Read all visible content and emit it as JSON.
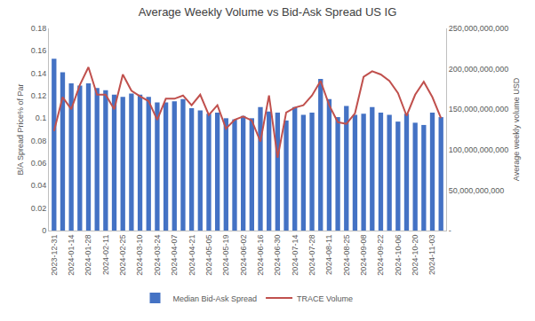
{
  "chart_data": {
    "type": "bar",
    "title": "Average Weekly Volume vs Bid-Ask Spread US IG",
    "y_label": "B/A Spread Price% of Par",
    "y2_label": "Average weekly volume USD",
    "categories": [
      "2023-12-31",
      null,
      "2024-01-14",
      null,
      "2024-01-28",
      null,
      "2024-02-11",
      null,
      "2024-02-25",
      null,
      "2024-03-10",
      null,
      "2024-03-24",
      null,
      "2024-04-07",
      null,
      "2024-04-21",
      null,
      "2024-05-05",
      null,
      "2024-05-19",
      null,
      "2024-06-02",
      null,
      "2024-06-16",
      null,
      "2024-06-30",
      null,
      "2024-07-14",
      null,
      "2024-07-28",
      null,
      "2024-08-11",
      null,
      "2024-08-25",
      null,
      "2024-09-08",
      null,
      "2024-09-22",
      null,
      "2024-10-06",
      null,
      "2024-10-20",
      null,
      "2024-11-03",
      null
    ],
    "series": [
      {
        "name": "Median Bid-Ask Spread",
        "type": "bar",
        "color": "#4472c4",
        "values": [
          0.153,
          0.141,
          0.131,
          0.129,
          0.131,
          0.127,
          0.125,
          0.121,
          0.119,
          0.122,
          0.121,
          0.119,
          0.114,
          0.114,
          0.115,
          0.117,
          0.109,
          0.107,
          0.104,
          0.105,
          0.1,
          0.099,
          0.102,
          0.1,
          0.11,
          0.106,
          0.105,
          0.098,
          0.11,
          0.103,
          0.105,
          0.135,
          0.117,
          0.101,
          0.111,
          0.103,
          0.104,
          0.11,
          0.105,
          0.103,
          0.097,
          0.104,
          0.096,
          0.094,
          0.105,
          0.101
        ]
      },
      {
        "name": "TRACE Volume",
        "type": "line",
        "axis": "y2",
        "color": "#c0504d",
        "line_style": "solid",
        "values": [
          123000000000,
          165000000000,
          150000000000,
          180000000000,
          202000000000,
          168000000000,
          168000000000,
          150000000000,
          193000000000,
          173000000000,
          166000000000,
          160000000000,
          137000000000,
          163000000000,
          163000000000,
          167000000000,
          155000000000,
          168000000000,
          143000000000,
          155000000000,
          126000000000,
          137000000000,
          141000000000,
          136000000000,
          110000000000,
          167000000000,
          90000000000,
          146000000000,
          152000000000,
          155000000000,
          167000000000,
          185000000000,
          155000000000,
          134000000000,
          132000000000,
          145000000000,
          190000000000,
          197000000000,
          193000000000,
          185000000000,
          170000000000,
          142000000000,
          168000000000,
          184000000000,
          165000000000,
          139000000000
        ]
      }
    ],
    "ylim": [
      0,
      0.18
    ],
    "yticks": [
      0,
      0.02,
      0.04,
      0.06,
      0.08,
      0.1,
      0.12,
      0.14,
      0.16,
      0.18
    ],
    "y2lim": [
      0,
      250000000000
    ],
    "y2ticks": [
      {
        "value": 0,
        "label": "-"
      },
      {
        "value": 50000000000,
        "label": "50,000,000,000"
      },
      {
        "value": 100000000000,
        "label": "100,000,000,000"
      },
      {
        "value": 150000000000,
        "label": "150,000,000,000"
      },
      {
        "value": 200000000000,
        "label": "200,000,000,000"
      },
      {
        "value": 250000000000,
        "label": "250,000,000,000"
      }
    ],
    "grid": false,
    "legend": "bottom"
  }
}
